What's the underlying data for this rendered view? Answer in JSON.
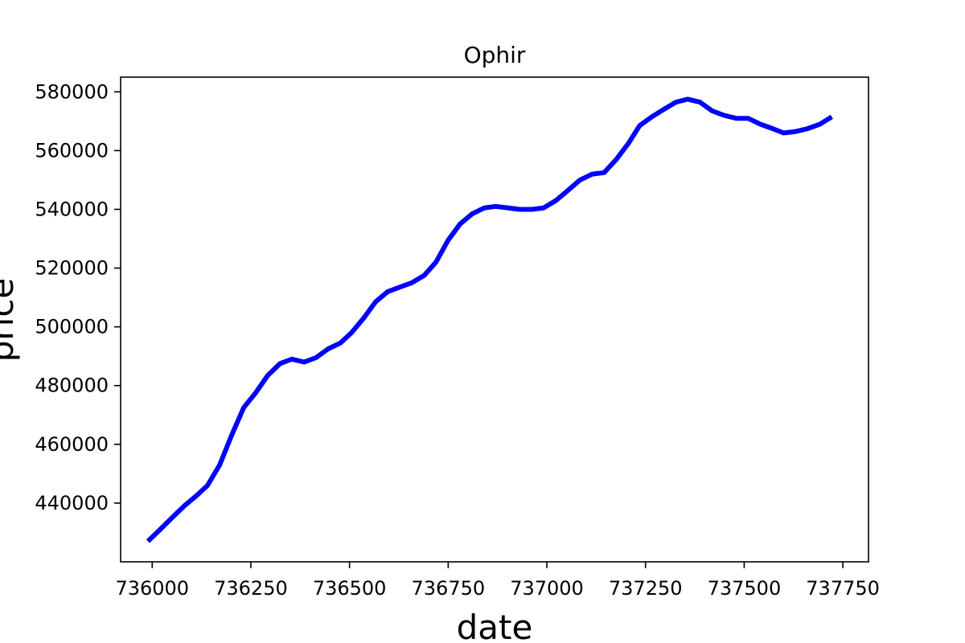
{
  "chart_data": {
    "type": "line",
    "title": "Ophir",
    "xlabel": "date",
    "ylabel": "price",
    "xlim": [
      735920,
      737815
    ],
    "ylim": [
      420000,
      585000
    ],
    "xticks": [
      736000,
      736250,
      736500,
      736750,
      737000,
      737250,
      737500,
      737750
    ],
    "xtick_labels": [
      "736000",
      "736250",
      "736500",
      "736750",
      "737000",
      "737250",
      "737500",
      "737750"
    ],
    "yticks": [
      440000,
      460000,
      480000,
      500000,
      520000,
      540000,
      560000,
      580000
    ],
    "ytick_labels": [
      "440000",
      "460000",
      "480000",
      "500000",
      "520000",
      "540000",
      "560000",
      "580000"
    ],
    "grid": false,
    "legend": "none",
    "series": [
      {
        "color": "#0000ff",
        "x": [
          735989,
          736020,
          736050,
          736081,
          736112,
          736140,
          736171,
          736201,
          736232,
          736262,
          736293,
          736324,
          736354,
          736385,
          736415,
          736446,
          736477,
          736505,
          736536,
          736566,
          736597,
          736627,
          736658,
          736689,
          736719,
          736750,
          736780,
          736811,
          736842,
          736870,
          736901,
          736931,
          736962,
          736992,
          737023,
          737054,
          737084,
          737115,
          737145,
          737176,
          737207,
          737235,
          737266,
          737296,
          737327,
          737357,
          737388,
          737419,
          737449,
          737480,
          737510,
          737541,
          737572,
          737600,
          737631,
          737661,
          737692,
          737722
        ],
        "y": [
          427000,
          431000,
          435000,
          439000,
          442500,
          446000,
          453000,
          463000,
          472500,
          477500,
          483500,
          487500,
          489000,
          488000,
          489500,
          492500,
          494500,
          498000,
          503000,
          508500,
          512000,
          513500,
          515000,
          517500,
          522000,
          529500,
          535000,
          538500,
          540500,
          541000,
          540500,
          540000,
          540000,
          540500,
          543000,
          546500,
          550000,
          552000,
          552500,
          557000,
          562500,
          568500,
          571500,
          574000,
          576500,
          577500,
          576500,
          573500,
          572000,
          571000,
          571000,
          569000,
          567500,
          566000,
          566500,
          567500,
          569000,
          571500
        ]
      }
    ]
  }
}
